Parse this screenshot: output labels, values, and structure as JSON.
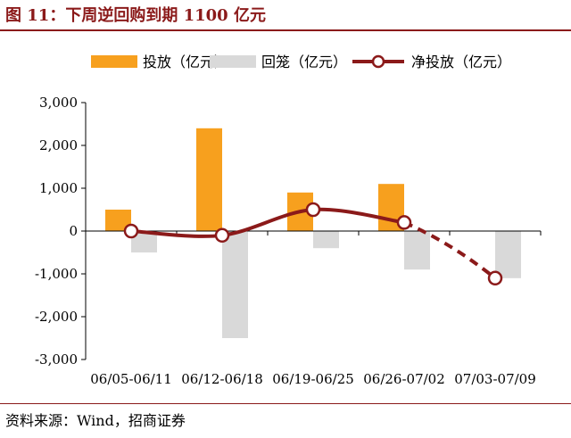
{
  "figure": {
    "title": "图 11：下周逆回购到期 1100 亿元",
    "source": "资料来源：Wind，招商证券"
  },
  "chart_data": {
    "type": "bar",
    "categories": [
      "06/05-06/11",
      "06/12-06/18",
      "06/19-06/25",
      "06/26-07/02",
      "07/03-07/09"
    ],
    "series": [
      {
        "name": "投放（亿元）",
        "type": "bar",
        "color": "#f7a01e",
        "values": [
          500,
          2400,
          900,
          1100,
          0
        ]
      },
      {
        "name": "回笼（亿元）",
        "type": "bar",
        "color": "#d9d9d9",
        "values": [
          -500,
          -2500,
          -400,
          -900,
          -1100
        ]
      },
      {
        "name": "净投放（亿元）",
        "type": "line",
        "color": "#8b1a1a",
        "values": [
          0,
          -100,
          500,
          200,
          -1100
        ],
        "dashed_from_index": 3
      }
    ],
    "yticks": [
      3000,
      2000,
      1000,
      0,
      -1000,
      -2000,
      -3000
    ],
    "ytick_labels": [
      "3,000",
      "2,000",
      "1,000",
      "0",
      "-1,000",
      "-2,000",
      "-3,000"
    ],
    "ylim": [
      -3000,
      3000
    ],
    "legend_position": "top",
    "grid": false
  }
}
